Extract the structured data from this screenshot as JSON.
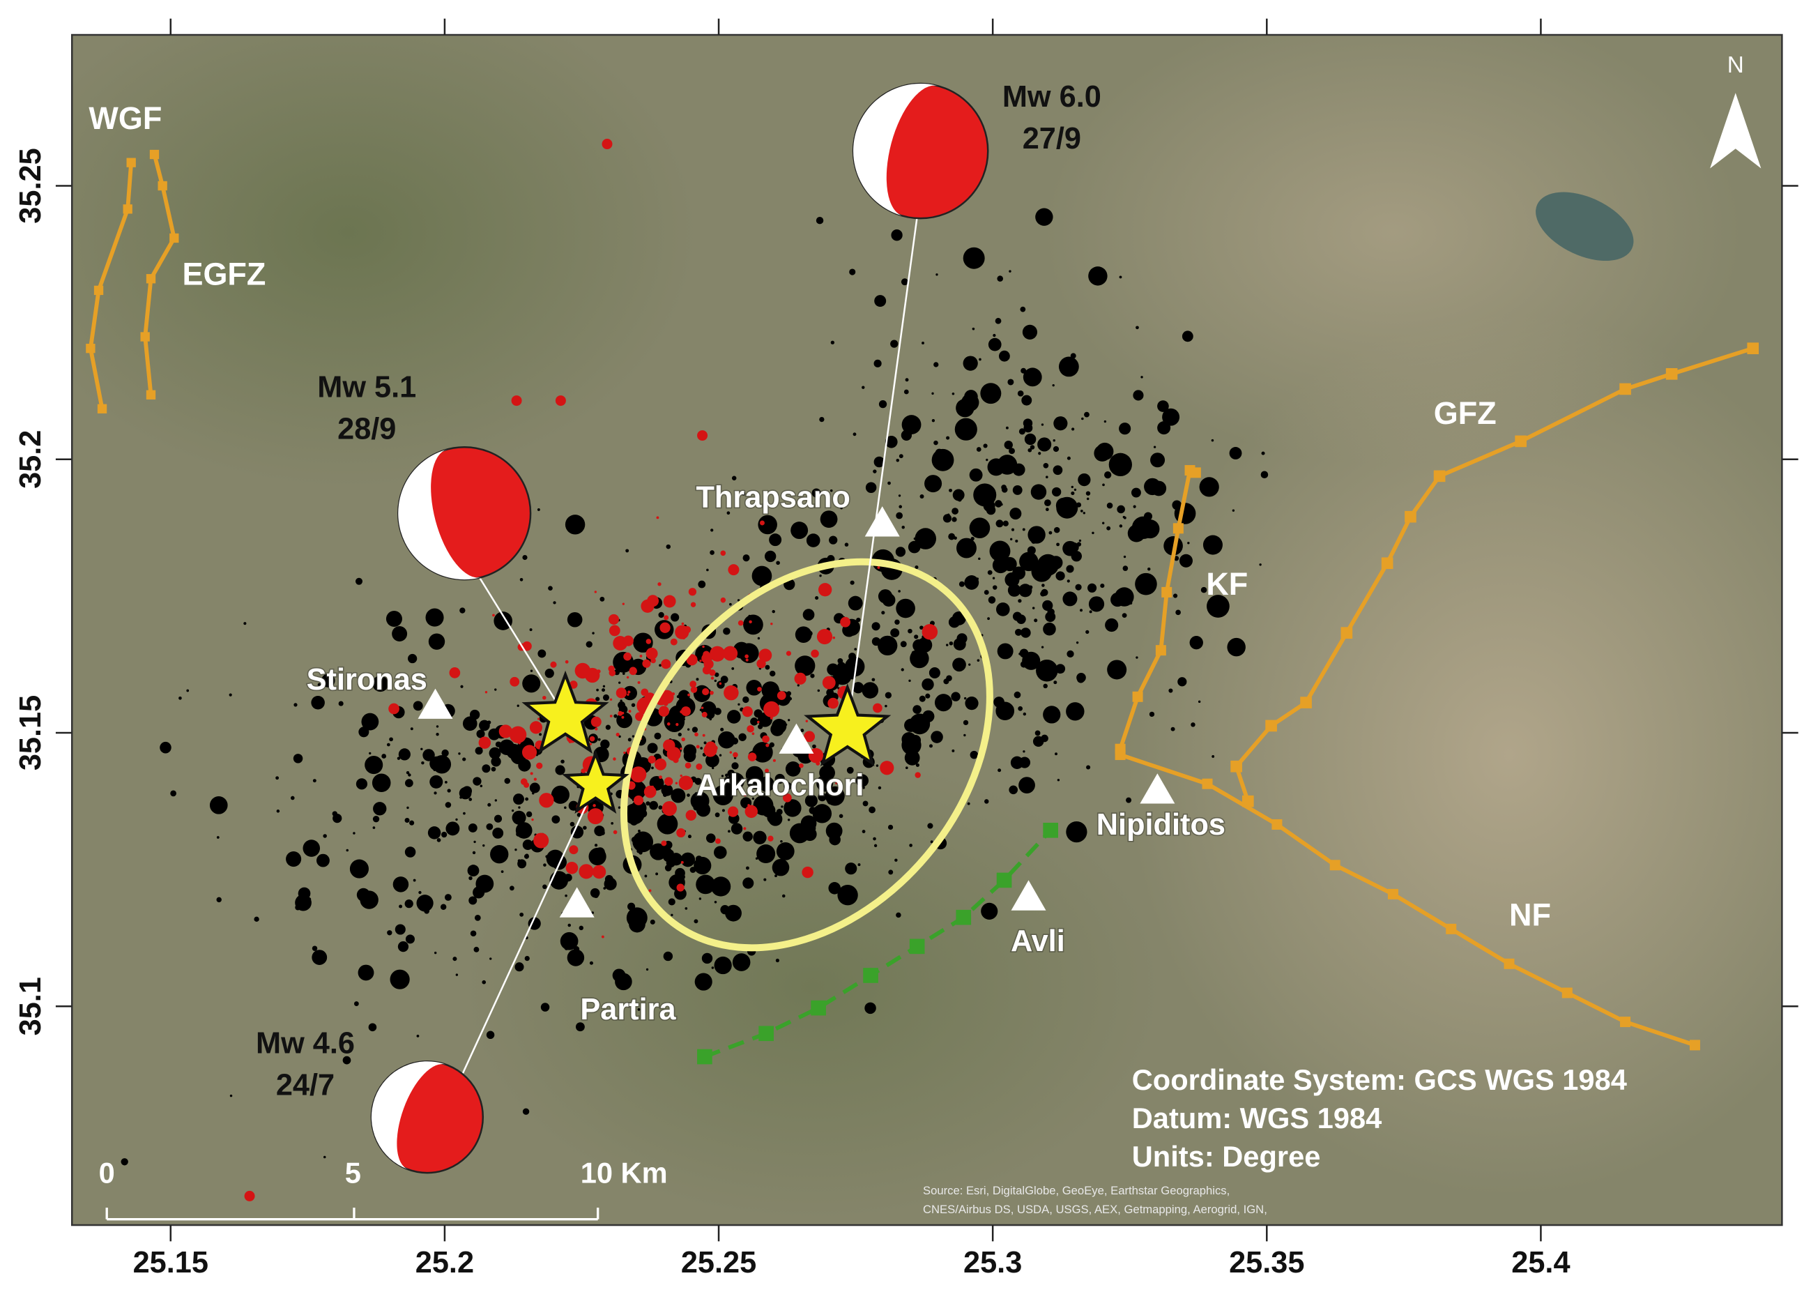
{
  "map": {
    "xlim": [
      25.132,
      25.444
    ],
    "ylim": [
      35.06,
      35.2776
    ],
    "xticks": [
      25.15,
      25.2,
      25.25,
      25.3,
      25.35,
      25.4
    ],
    "yticks": [
      35.1,
      35.15,
      35.2,
      35.25
    ],
    "mechanisms": [
      {
        "magnitude": "Mw 6.0",
        "date": "27/9"
      },
      {
        "magnitude": "Mw 5.1",
        "date": "28/9"
      },
      {
        "magnitude": "Mw 4.6",
        "date": "24/7"
      }
    ],
    "places": [
      "Thrapsano",
      "Stironas",
      "Arkalochori",
      "Nipiditos",
      "Avli",
      "Partira"
    ],
    "faults": [
      "WGF",
      "EGFZ",
      "GFZ",
      "KF",
      "NF"
    ],
    "north": "N",
    "scale_bar": [
      "0",
      "5",
      "10 Km"
    ],
    "info": [
      "Coordinate System: GCS WGS 1984",
      "Datum: WGS 1984",
      "Units: Degree"
    ],
    "attribution": [
      "Source: Esri, DigitalGlobe, GeoEye, Earthstar Geographics,",
      "CNES/Airbus DS, USDA, USGS, AEX, Getmapping, Aerogrid, IGN,"
    ]
  }
}
